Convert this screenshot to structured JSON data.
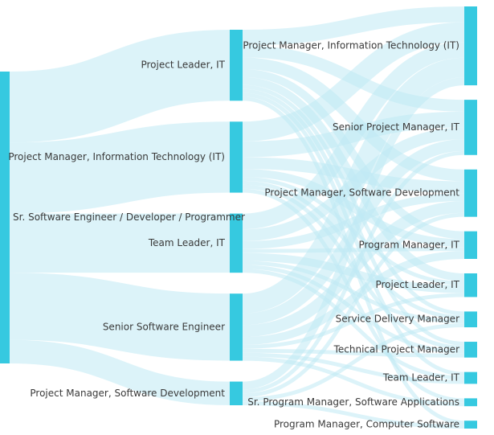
{
  "diagram": {
    "type": "sankey",
    "colors": {
      "node": "#36c9e0",
      "link": "#bfe9f4",
      "text": "#3a3a3a"
    },
    "columns": [
      [
        {
          "id": "root",
          "label": "Sr. Software Engineer / Developer / Programmer"
        }
      ],
      [
        {
          "id": "m_pl_it",
          "label": "Project Leader, IT"
        },
        {
          "id": "m_pm_it",
          "label": "Project Manager, Information Technology (IT)"
        },
        {
          "id": "m_tl_it",
          "label": "Team Leader, IT"
        },
        {
          "id": "m_sse",
          "label": "Senior Software Engineer"
        },
        {
          "id": "m_pm_sd",
          "label": "Project Manager, Software Development"
        }
      ],
      [
        {
          "id": "r_pm_it",
          "label": "Project Manager, Information Technology (IT)"
        },
        {
          "id": "r_spm_it",
          "label": "Senior Project Manager, IT"
        },
        {
          "id": "r_pm_sd",
          "label": "Project Manager, Software Development"
        },
        {
          "id": "r_prm_it",
          "label": "Program Manager, IT"
        },
        {
          "id": "r_pl_it",
          "label": "Project Leader, IT"
        },
        {
          "id": "r_sdm",
          "label": "Service Delivery Manager"
        },
        {
          "id": "r_tpm",
          "label": "Technical Project Manager"
        },
        {
          "id": "r_tl_it",
          "label": "Team Leader, IT"
        },
        {
          "id": "r_sprm_sa",
          "label": "Sr. Program Manager, Software Applications"
        },
        {
          "id": "r_prm_cs",
          "label": "Program Manager, Computer Software"
        }
      ]
    ],
    "links": [
      {
        "source": "root",
        "target": "m_pl_it",
        "value": 18
      },
      {
        "source": "root",
        "target": "m_pm_it",
        "value": 18
      },
      {
        "source": "root",
        "target": "m_tl_it",
        "value": 15
      },
      {
        "source": "root",
        "target": "m_sse",
        "value": 17
      },
      {
        "source": "root",
        "target": "m_pm_sd",
        "value": 6
      },
      {
        "source": "m_pl_it",
        "target": "r_pm_it",
        "value": 4
      },
      {
        "source": "m_pl_it",
        "target": "r_spm_it",
        "value": 3
      },
      {
        "source": "m_pl_it",
        "target": "r_pm_sd",
        "value": 3
      },
      {
        "source": "m_pl_it",
        "target": "r_prm_it",
        "value": 2
      },
      {
        "source": "m_pl_it",
        "target": "r_pl_it",
        "value": 2
      },
      {
        "source": "m_pl_it",
        "target": "r_sdm",
        "value": 1
      },
      {
        "source": "m_pl_it",
        "target": "r_tpm",
        "value": 1
      },
      {
        "source": "m_pl_it",
        "target": "r_tl_it",
        "value": 1
      },
      {
        "source": "m_pl_it",
        "target": "r_prm_cs",
        "value": 1
      },
      {
        "source": "m_pm_it",
        "target": "r_pm_it",
        "value": 5
      },
      {
        "source": "m_pm_it",
        "target": "r_spm_it",
        "value": 4
      },
      {
        "source": "m_pm_it",
        "target": "r_pm_sd",
        "value": 3
      },
      {
        "source": "m_pm_it",
        "target": "r_prm_it",
        "value": 2
      },
      {
        "source": "m_pm_it",
        "target": "r_pl_it",
        "value": 1
      },
      {
        "source": "m_pm_it",
        "target": "r_sdm",
        "value": 1
      },
      {
        "source": "m_pm_it",
        "target": "r_tpm",
        "value": 1
      },
      {
        "source": "m_pm_it",
        "target": "r_sprm_sa",
        "value": 1
      },
      {
        "source": "m_tl_it",
        "target": "r_pm_it",
        "value": 4
      },
      {
        "source": "m_tl_it",
        "target": "r_spm_it",
        "value": 3
      },
      {
        "source": "m_tl_it",
        "target": "r_pm_sd",
        "value": 2
      },
      {
        "source": "m_tl_it",
        "target": "r_prm_it",
        "value": 1
      },
      {
        "source": "m_tl_it",
        "target": "r_pl_it",
        "value": 2
      },
      {
        "source": "m_tl_it",
        "target": "r_sdm",
        "value": 1
      },
      {
        "source": "m_tl_it",
        "target": "r_tl_it",
        "value": 1
      },
      {
        "source": "m_tl_it",
        "target": "r_tpm",
        "value": 1
      },
      {
        "source": "m_sse",
        "target": "r_pm_it",
        "value": 5
      },
      {
        "source": "m_sse",
        "target": "r_spm_it",
        "value": 3
      },
      {
        "source": "m_sse",
        "target": "r_pm_sd",
        "value": 3
      },
      {
        "source": "m_sse",
        "target": "r_prm_it",
        "value": 2
      },
      {
        "source": "m_sse",
        "target": "r_pl_it",
        "value": 1
      },
      {
        "source": "m_sse",
        "target": "r_tpm",
        "value": 1
      },
      {
        "source": "m_sse",
        "target": "r_tl_it",
        "value": 1
      },
      {
        "source": "m_sse",
        "target": "r_sprm_sa",
        "value": 1
      },
      {
        "source": "m_pm_sd",
        "target": "r_pm_it",
        "value": 2
      },
      {
        "source": "m_pm_sd",
        "target": "r_spm_it",
        "value": 1
      },
      {
        "source": "m_pm_sd",
        "target": "r_pm_sd",
        "value": 1
      },
      {
        "source": "m_pm_sd",
        "target": "r_sdm",
        "value": 1
      },
      {
        "source": "m_pm_sd",
        "target": "r_prm_cs",
        "value": 1
      }
    ]
  }
}
